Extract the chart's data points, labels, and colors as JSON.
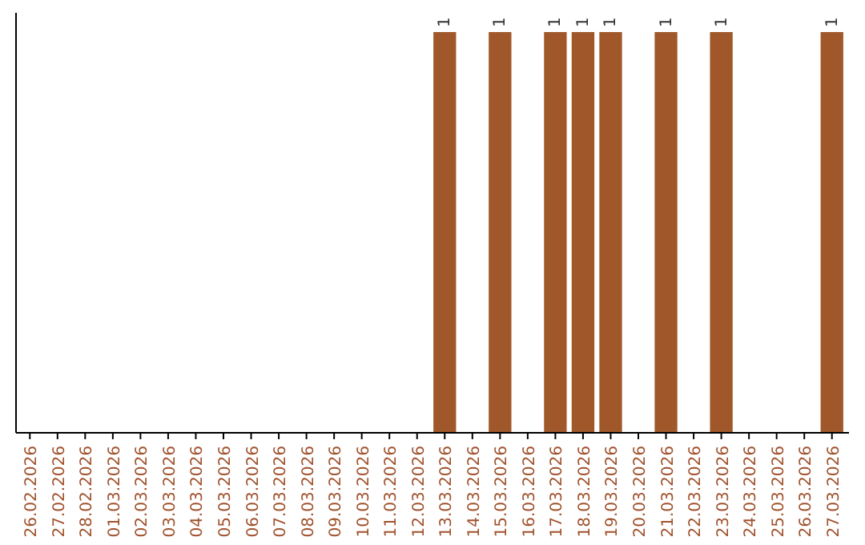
{
  "chart_data": {
    "type": "bar",
    "categories": [
      "26.02.2026",
      "27.02.2026",
      "28.02.2026",
      "01.03.2026",
      "02.03.2026",
      "03.03.2026",
      "04.03.2026",
      "05.03.2026",
      "06.03.2026",
      "07.03.2026",
      "08.03.2026",
      "09.03.2026",
      "10.03.2026",
      "11.03.2026",
      "12.03.2026",
      "13.03.2026",
      "14.03.2026",
      "15.03.2026",
      "16.03.2026",
      "17.03.2026",
      "18.03.2026",
      "19.03.2026",
      "20.03.2026",
      "21.03.2026",
      "22.03.2026",
      "23.03.2026",
      "24.03.2026",
      "25.03.2026",
      "26.03.2026",
      "27.03.2026"
    ],
    "values": [
      null,
      null,
      null,
      null,
      null,
      null,
      null,
      null,
      null,
      null,
      null,
      null,
      null,
      null,
      null,
      1,
      null,
      1,
      null,
      1,
      1,
      1,
      null,
      1,
      null,
      1,
      null,
      null,
      null,
      1
    ],
    "data_labels": true,
    "color": "#a0582a",
    "tick_labels": "x"
  }
}
